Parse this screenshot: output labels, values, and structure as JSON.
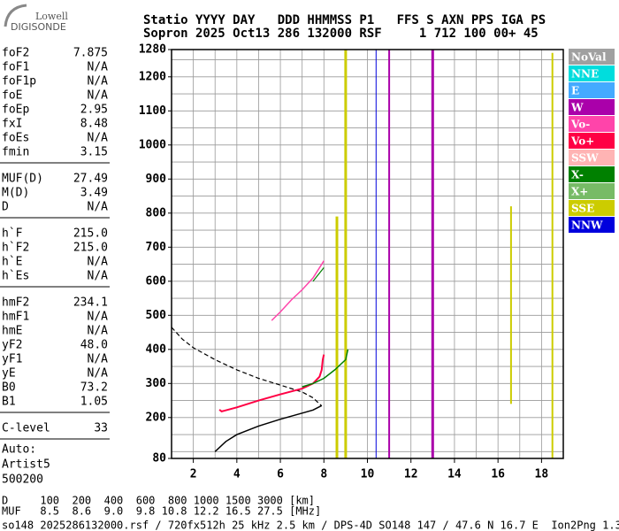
{
  "logo": [
    "Lowell",
    "DIGISONDE"
  ],
  "header": [
    "Statio YYYY DAY   DDD HHMMSS P1   FFS S AXN PPS IGA PS",
    "Sopron 2025 Oct13 286 132000 RSF     1 712 100 00+ 45"
  ],
  "params": [
    [
      {
        "name": "foF2",
        "value": "7.875"
      },
      {
        "name": "foF1",
        "value": "N/A"
      },
      {
        "name": "foF1p",
        "value": "N/A"
      },
      {
        "name": "foE",
        "value": "N/A"
      },
      {
        "name": "foEp",
        "value": "2.95"
      },
      {
        "name": "fxI",
        "value": "8.48"
      },
      {
        "name": "foEs",
        "value": "N/A"
      },
      {
        "name": "fmin",
        "value": "3.15"
      }
    ],
    [
      {
        "name": "MUF(D)",
        "value": "27.49"
      },
      {
        "name": "M(D)",
        "value": "3.49"
      },
      {
        "name": "D",
        "value": "N/A"
      }
    ],
    [
      {
        "name": "h`F",
        "value": "215.0"
      },
      {
        "name": "h`F2",
        "value": "215.0"
      },
      {
        "name": "h`E",
        "value": "N/A"
      },
      {
        "name": "h`Es",
        "value": "N/A"
      }
    ],
    [
      {
        "name": "hmF2",
        "value": "234.1"
      },
      {
        "name": "hmF1",
        "value": "N/A"
      },
      {
        "name": "hmE",
        "value": "N/A"
      },
      {
        "name": "yF2",
        "value": "48.0"
      },
      {
        "name": "yF1",
        "value": "N/A"
      },
      {
        "name": "yE",
        "value": "N/A"
      },
      {
        "name": "B0",
        "value": "73.2"
      },
      {
        "name": "B1",
        "value": "1.05"
      }
    ],
    [
      {
        "name": "C-level",
        "value": "33"
      }
    ]
  ],
  "auto": [
    "Auto:",
    "Artist5",
    "500200"
  ],
  "footer": [
    "D     100  200  400  600  800 1000 1500 3000 [km]",
    "MUF   8.5  8.6  9.0  9.8 10.8 12.2 16.5 27.5 [MHz]",
    "so148_2025286132000.rsf / 720fx512h 25 kHz 2.5 km / DPS-4D SO148 147 / 47.6 N 16.7 E  Ion2Png 1.3.20"
  ],
  "chart_data": {
    "type": "line",
    "xlim": [
      1,
      19
    ],
    "ylim": [
      80,
      1280
    ],
    "xticks": [
      2,
      4,
      6,
      8,
      10,
      12,
      14,
      16,
      18
    ],
    "yticks": [
      80,
      200,
      300,
      400,
      500,
      600,
      700,
      800,
      900,
      1000,
      1100,
      1200,
      1280
    ],
    "xgrid": [
      2,
      3,
      4,
      5,
      6,
      7,
      8,
      9,
      10,
      11,
      12,
      13,
      14,
      15,
      16,
      17,
      18
    ],
    "ygrid": [
      100,
      150,
      200,
      250,
      300,
      350,
      400,
      450,
      500,
      550,
      600,
      650,
      700,
      750,
      800,
      850,
      900,
      950,
      1000,
      1050,
      1100,
      1150,
      1200,
      1250
    ],
    "grid_color": "#999999",
    "legend": [
      {
        "name": "NoVal",
        "color": "#a0a0a0"
      },
      {
        "name": "NNE",
        "color": "#00dddd"
      },
      {
        "name": "E",
        "color": "#44aaff"
      },
      {
        "name": "W",
        "color": "#aa00aa"
      },
      {
        "name": "Vo-",
        "color": "#ff44aa"
      },
      {
        "name": "Vo+",
        "color": "#ff0044"
      },
      {
        "name": "SSW",
        "color": "#ffb4b4"
      },
      {
        "name": "X-",
        "color": "#008000"
      },
      {
        "name": "X+",
        "color": "#77bb66"
      },
      {
        "name": "SSE",
        "color": "#cccc00"
      },
      {
        "name": "NNW",
        "color": "#0000dd"
      }
    ],
    "series": [
      {
        "color": "#cccc00",
        "width": 3,
        "x": [
          8.6,
          8.6
        ],
        "y": [
          80,
          790
        ]
      },
      {
        "color": "#cccc00",
        "width": 3,
        "x": [
          9.0,
          9.0
        ],
        "y": [
          80,
          1280
        ]
      },
      {
        "color": "#cccc00",
        "width": 2,
        "x": [
          16.6,
          16.6
        ],
        "y": [
          240,
          820
        ]
      },
      {
        "color": "#cccc00",
        "width": 2,
        "x": [
          18.5,
          18.5
        ],
        "y": [
          80,
          1270
        ]
      },
      {
        "color": "#aa00aa",
        "width": 3,
        "x": [
          13.0,
          13.0
        ],
        "y": [
          80,
          1280
        ]
      },
      {
        "color": "#aa00aa",
        "width": 2,
        "x": [
          11.0,
          11.0
        ],
        "y": [
          80,
          1280
        ]
      },
      {
        "color": "#0000dd",
        "width": 1,
        "x": [
          10.4,
          10.4
        ],
        "y": [
          80,
          1280
        ]
      },
      {
        "color": "#000000",
        "width": 1.2,
        "dashed": true,
        "x": [
          1.0,
          1.5,
          2.0,
          3.0,
          4.0,
          5.0,
          6.0,
          7.0,
          7.5,
          7.9
        ],
        "y": [
          465,
          430,
          405,
          370,
          340,
          315,
          295,
          275,
          258,
          234
        ]
      },
      {
        "color": "#000000",
        "width": 1.5,
        "x": [
          3.0,
          3.5,
          4.0,
          5.0,
          6.0,
          7.0,
          7.5,
          7.9
        ],
        "y": [
          100,
          130,
          150,
          175,
          195,
          213,
          222,
          235
        ]
      },
      {
        "color": "#ff0044",
        "width": 2,
        "x": [
          3.2,
          3.3,
          4.0,
          5.0,
          6.0,
          7.0,
          7.5,
          7.8,
          7.9,
          7.95,
          8.0
        ],
        "y": [
          223,
          218,
          230,
          250,
          268,
          285,
          300,
          320,
          340,
          370,
          385
        ]
      },
      {
        "color": "#008000",
        "width": 1.5,
        "x": [
          7.0,
          7.5,
          8.0,
          8.5,
          9.0,
          9.1
        ],
        "y": [
          290,
          300,
          315,
          340,
          370,
          400
        ]
      },
      {
        "color": "#ff44aa",
        "width": 1.5,
        "x": [
          5.6,
          6.0,
          6.5,
          7.0,
          7.5,
          8.0
        ],
        "y": [
          485,
          510,
          545,
          575,
          610,
          660
        ]
      },
      {
        "color": "#008000",
        "width": 1.2,
        "x": [
          7.5,
          8.0
        ],
        "y": [
          600,
          640
        ]
      }
    ]
  }
}
